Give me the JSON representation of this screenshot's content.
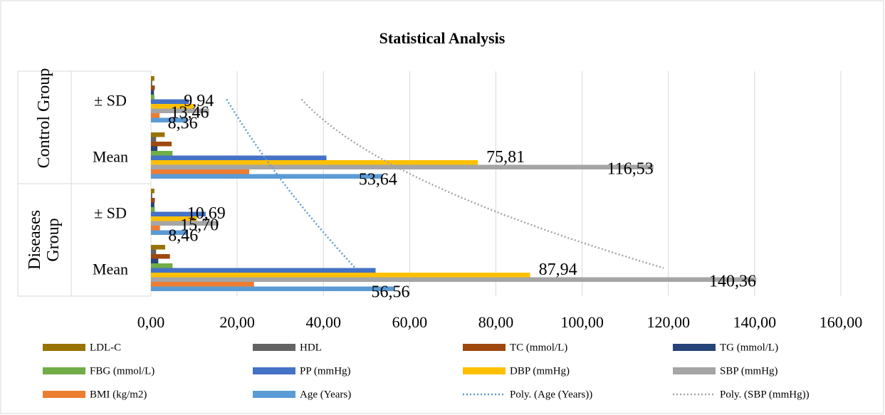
{
  "chart_data": {
    "type": "bar",
    "orientation": "horizontal",
    "title": "Statistical Analysis",
    "category_groups": [
      "Control Group",
      "Diseases Group"
    ],
    "categories": [
      "± SD",
      "Mean",
      "± SD",
      "Mean"
    ],
    "series": [
      {
        "name": "LDL-C",
        "color": "#997300",
        "values": [
          0.8,
          3.2,
          0.8,
          3.3
        ]
      },
      {
        "name": "HDL",
        "color": "#636363",
        "values": [
          0.3,
          1.2,
          0.3,
          1.2
        ]
      },
      {
        "name": "TC (mmol/L)",
        "color": "#9e480e",
        "values": [
          0.9,
          4.8,
          0.9,
          4.4
        ]
      },
      {
        "name": "TG (mmol/L)",
        "color": "#264478",
        "values": [
          0.7,
          1.5,
          0.8,
          1.7
        ]
      },
      {
        "name": "FBG (mmol/L)",
        "color": "#70ad47",
        "values": [
          0.8,
          5.0,
          0.9,
          5.0
        ]
      },
      {
        "name": "PP (mmHg)",
        "color": "#4472c4",
        "values": [
          8.8,
          40.7,
          12.7,
          52.1
        ]
      },
      {
        "name": "DBP (mmHg)",
        "color": "#ffc000",
        "values": [
          9.94,
          75.81,
          10.69,
          87.94
        ],
        "value_labels": [
          "9,94",
          "75,81",
          "10,69",
          "87,94"
        ]
      },
      {
        "name": "SBP (mmHg)",
        "color": "#a5a5a5",
        "values": [
          13.46,
          116.53,
          15.7,
          140.36
        ],
        "value_labels": [
          "13,46",
          "116,53",
          "15,70",
          "140,36"
        ]
      },
      {
        "name": "BMI (kg/m2)",
        "color": "#ed7d31",
        "values": [
          2.0,
          22.8,
          2.1,
          23.9
        ]
      },
      {
        "name": "Age (Years)",
        "color": "#5b9bd5",
        "values": [
          8.36,
          53.64,
          8.46,
          56.56
        ],
        "value_labels": [
          "8,36",
          "53,64",
          "8,46",
          "56,56"
        ]
      }
    ],
    "trendlines": [
      {
        "name": "Poly. (Age (Years))",
        "series": 9,
        "order": 2,
        "color": "#5b9bd5"
      },
      {
        "name": "Poly. (SBP (mmHg))",
        "series": 7,
        "order": 2,
        "color": "#a5a5a5"
      }
    ],
    "xlim": [
      0,
      160
    ],
    "xticks": [
      {
        "value": 0,
        "label": "0,00"
      },
      {
        "value": 20,
        "label": "20,00"
      },
      {
        "value": 40,
        "label": "40,00"
      },
      {
        "value": 60,
        "label": "60,00"
      },
      {
        "value": 80,
        "label": "80,00"
      },
      {
        "value": 100,
        "label": "100,00"
      },
      {
        "value": 120,
        "label": "120,00"
      },
      {
        "value": 140,
        "label": "140,00"
      },
      {
        "value": 160,
        "label": "160,00"
      }
    ],
    "grid": true,
    "legend": "bottom"
  }
}
